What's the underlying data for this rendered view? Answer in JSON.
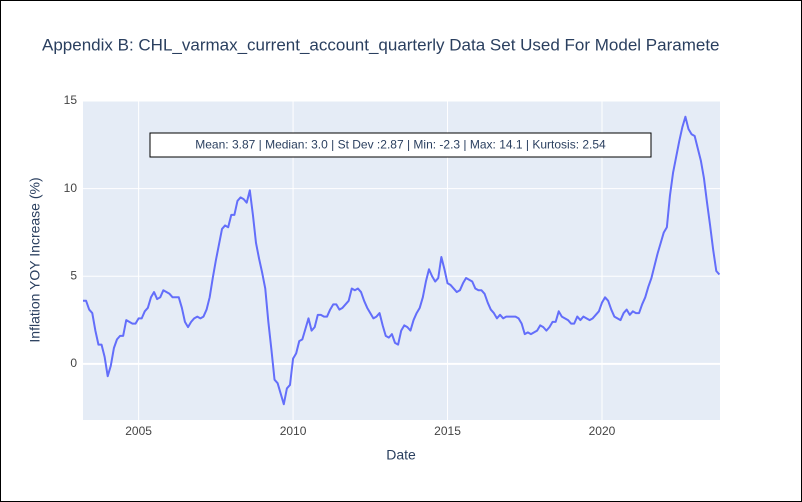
{
  "chart_data": {
    "type": "line",
    "title": "Appendix B: CHL_varmax_current_account_quarterly Data Set Used For Model Paramete",
    "x_label": "Date",
    "y_label": "Inflation YOY Increase (%)",
    "annotation": "Mean: 3.87 | Median: 3.0 | St Dev :2.87 | Min: -2.3 | Max: 14.1 | Kurtosis: 2.54",
    "grid": true,
    "xlim": [
      2003.2,
      2023.82
    ],
    "ylim": [
      -3.2,
      15
    ],
    "xticks": [
      2005,
      2010,
      2015,
      2020
    ],
    "yticks": [
      0,
      5,
      10,
      15
    ],
    "x": [
      2003.2,
      2003.3,
      2003.4,
      2003.5,
      2003.6,
      2003.7,
      2003.8,
      2003.9,
      2004.0,
      2004.1,
      2004.2,
      2004.3,
      2004.4,
      2004.5,
      2004.6,
      2004.7,
      2004.8,
      2004.9,
      2005.0,
      2005.1,
      2005.2,
      2005.3,
      2005.4,
      2005.5,
      2005.6,
      2005.7,
      2005.8,
      2005.9,
      2006.0,
      2006.1,
      2006.2,
      2006.3,
      2006.4,
      2006.5,
      2006.6,
      2006.7,
      2006.8,
      2006.9,
      2007.0,
      2007.1,
      2007.2,
      2007.3,
      2007.4,
      2007.5,
      2007.6,
      2007.7,
      2007.8,
      2007.9,
      2008.0,
      2008.1,
      2008.2,
      2008.3,
      2008.4,
      2008.5,
      2008.6,
      2008.7,
      2008.8,
      2008.9,
      2009.0,
      2009.1,
      2009.2,
      2009.3,
      2009.4,
      2009.5,
      2009.6,
      2009.7,
      2009.8,
      2009.9,
      2010.0,
      2010.1,
      2010.2,
      2010.3,
      2010.4,
      2010.5,
      2010.6,
      2010.7,
      2010.8,
      2010.9,
      2011.0,
      2011.1,
      2011.2,
      2011.3,
      2011.4,
      2011.5,
      2011.6,
      2011.7,
      2011.8,
      2011.9,
      2012.0,
      2012.1,
      2012.2,
      2012.3,
      2012.4,
      2012.5,
      2012.6,
      2012.7,
      2012.8,
      2012.9,
      2013.0,
      2013.1,
      2013.2,
      2013.3,
      2013.4,
      2013.5,
      2013.6,
      2013.7,
      2013.8,
      2013.9,
      2014.0,
      2014.1,
      2014.2,
      2014.3,
      2014.4,
      2014.5,
      2014.6,
      2014.7,
      2014.8,
      2014.9,
      2015.0,
      2015.1,
      2015.2,
      2015.3,
      2015.4,
      2015.5,
      2015.6,
      2015.7,
      2015.8,
      2015.9,
      2016.0,
      2016.1,
      2016.2,
      2016.3,
      2016.4,
      2016.5,
      2016.6,
      2016.7,
      2016.8,
      2016.9,
      2017.0,
      2017.1,
      2017.2,
      2017.3,
      2017.4,
      2017.5,
      2017.6,
      2017.7,
      2017.8,
      2017.9,
      2018.0,
      2018.1,
      2018.2,
      2018.3,
      2018.4,
      2018.5,
      2018.6,
      2018.7,
      2018.8,
      2018.9,
      2019.0,
      2019.1,
      2019.2,
      2019.3,
      2019.4,
      2019.5,
      2019.6,
      2019.7,
      2019.8,
      2019.9,
      2020.0,
      2020.1,
      2020.2,
      2020.3,
      2020.4,
      2020.5,
      2020.6,
      2020.7,
      2020.8,
      2020.9,
      2021.0,
      2021.1,
      2021.2,
      2021.3,
      2021.4,
      2021.5,
      2021.6,
      2021.7,
      2021.8,
      2021.9,
      2022.0,
      2022.1,
      2022.2,
      2022.3,
      2022.4,
      2022.5,
      2022.6,
      2022.7,
      2022.8,
      2022.9,
      2023.0,
      2023.1,
      2023.2,
      2023.3,
      2023.4,
      2023.5,
      2023.6,
      2023.7,
      2023.8
    ],
    "series": [
      {
        "color": "#636efa",
        "values": [
          3.6,
          3.6,
          3.1,
          2.9,
          1.9,
          1.1,
          1.1,
          0.4,
          -0.7,
          -0.1,
          0.9,
          1.4,
          1.6,
          1.6,
          2.5,
          2.4,
          2.3,
          2.3,
          2.6,
          2.6,
          3.0,
          3.2,
          3.8,
          4.1,
          3.7,
          3.8,
          4.2,
          4.1,
          4.0,
          3.8,
          3.8,
          3.8,
          3.2,
          2.4,
          2.1,
          2.4,
          2.6,
          2.7,
          2.6,
          2.7,
          3.1,
          3.8,
          4.9,
          5.9,
          6.8,
          7.7,
          7.9,
          7.8,
          8.5,
          8.5,
          9.3,
          9.5,
          9.4,
          9.2,
          9.9,
          8.5,
          6.9,
          6.0,
          5.2,
          4.3,
          2.4,
          0.8,
          -0.9,
          -1.1,
          -1.7,
          -2.3,
          -1.4,
          -1.2,
          0.3,
          0.6,
          1.3,
          1.4,
          2.0,
          2.6,
          1.9,
          2.1,
          2.8,
          2.8,
          2.7,
          2.7,
          3.1,
          3.4,
          3.4,
          3.1,
          3.2,
          3.4,
          3.6,
          4.3,
          4.2,
          4.3,
          4.1,
          3.6,
          3.2,
          2.9,
          2.6,
          2.7,
          2.9,
          2.2,
          1.6,
          1.5,
          1.7,
          1.2,
          1.1,
          1.9,
          2.2,
          2.1,
          1.9,
          2.5,
          2.9,
          3.2,
          3.8,
          4.7,
          5.4,
          5.0,
          4.7,
          4.9,
          6.1,
          5.4,
          4.6,
          4.5,
          4.3,
          4.1,
          4.2,
          4.6,
          4.9,
          4.8,
          4.7,
          4.3,
          4.2,
          4.2,
          4.0,
          3.5,
          3.1,
          2.9,
          2.6,
          2.8,
          2.6,
          2.7,
          2.7,
          2.7,
          2.7,
          2.6,
          2.3,
          1.7,
          1.8,
          1.7,
          1.8,
          1.9,
          2.2,
          2.1,
          1.9,
          2.1,
          2.4,
          2.4,
          3.0,
          2.7,
          2.6,
          2.5,
          2.3,
          2.3,
          2.7,
          2.5,
          2.7,
          2.6,
          2.5,
          2.6,
          2.8,
          3.0,
          3.5,
          3.8,
          3.6,
          3.1,
          2.7,
          2.6,
          2.5,
          2.9,
          3.1,
          2.8,
          3.0,
          2.9,
          2.9,
          3.4,
          3.8,
          4.4,
          4.9,
          5.6,
          6.3,
          6.9,
          7.5,
          7.8,
          9.6,
          10.9,
          11.8,
          12.7,
          13.5,
          14.1,
          13.4,
          13.1,
          13.0,
          12.3,
          11.6,
          10.6,
          9.2,
          7.9,
          6.5,
          5.3,
          5.1
        ]
      }
    ]
  }
}
